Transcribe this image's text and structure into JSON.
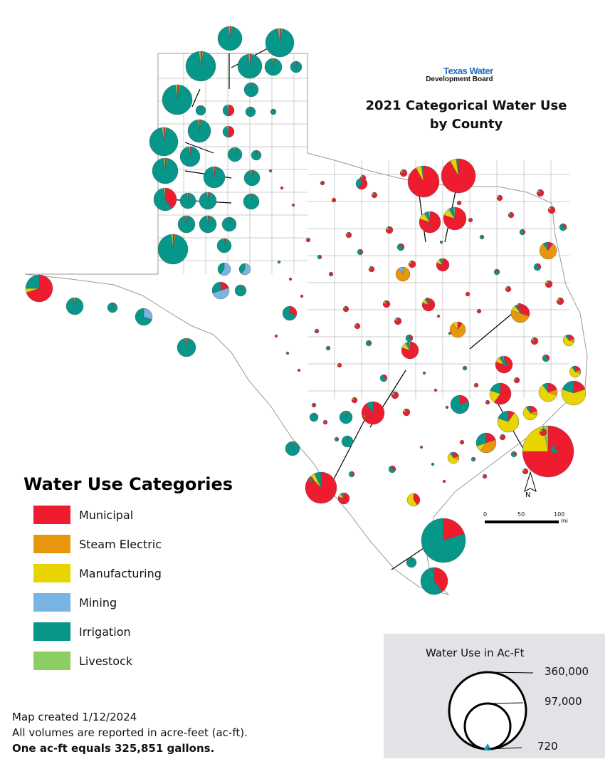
{
  "logo": {
    "line1": "Texas Water",
    "line2": "Development Board"
  },
  "title": {
    "line1": "2021 Categorical Water Use",
    "line2": "by County"
  },
  "legend": {
    "title": "Water Use Categories",
    "items": [
      {
        "label": "Municipal",
        "color": "#ee1c2e"
      },
      {
        "label": "Steam Electric",
        "color": "#e8960c"
      },
      {
        "label": "Manufacturing",
        "color": "#e8d400"
      },
      {
        "label": "Mining",
        "color": "#7ab4e3"
      },
      {
        "label": "Irrigation",
        "color": "#06968a"
      },
      {
        "label": "Livestock",
        "color": "#8bcf63"
      }
    ]
  },
  "size_legend": {
    "title": "Water Use in Ac-Ft",
    "values": [
      "360,000",
      "97,000",
      "720"
    ]
  },
  "scale_bar": {
    "labels": [
      "0",
      "50",
      "100"
    ],
    "unit": "mi"
  },
  "north_arrow": {
    "label": "N"
  },
  "notes": {
    "line1": "Map created 1/12/2024",
    "line2": "All volumes are reported in acre-feet (ac-ft).",
    "line3": "One ac-ft equals 325,851 gallons."
  }
}
